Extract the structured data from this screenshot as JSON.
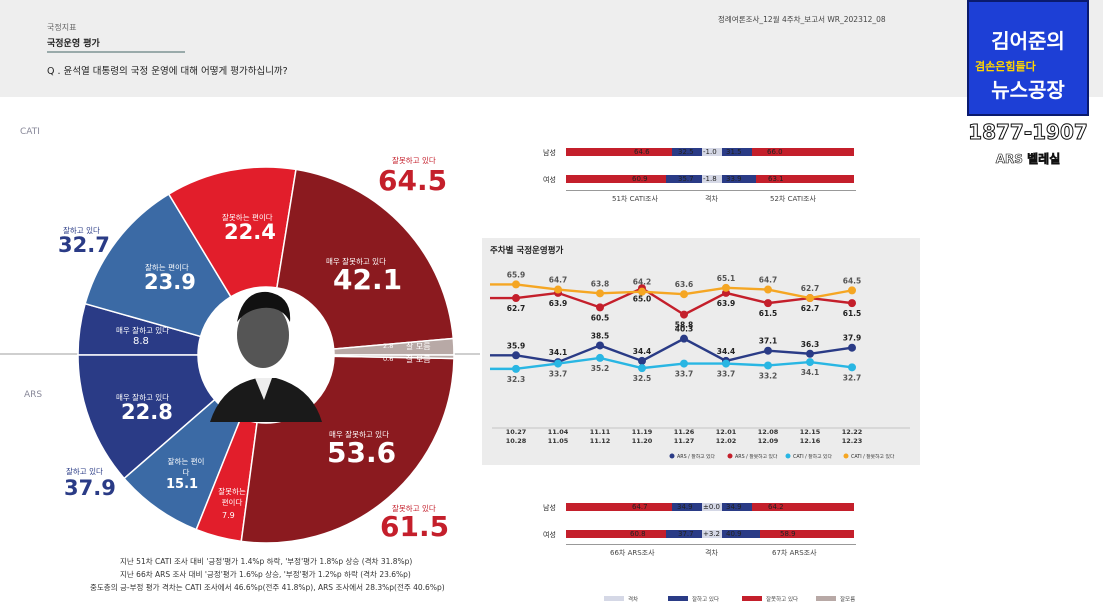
{
  "header": {
    "section": "국정지표",
    "title": "국정운영 평가",
    "question": "Q . 윤석열 대통령의 국정 운영에 대해 어떻게 평가하십니까?",
    "docref": "정례여론조사_12월 4주차_보고서   WR_202312_08"
  },
  "logo": {
    "line1": "김어준의",
    "line2": "겸손은힘들다",
    "line3": "뉴스공장",
    "phone": "1877-1907",
    "sub": "ARS 벨레실"
  },
  "side_labels": {
    "cati": "CATI",
    "ars": "ARS"
  },
  "colors": {
    "navy": "#2a3b86",
    "steel": "#3b6aa5",
    "darkred": "#8b1a1f",
    "red": "#e21e2b",
    "gray": "#b8a9a6",
    "bgpanel": "#ececec"
  },
  "donut": {
    "cati": {
      "good_total_label": "잘하고 있다",
      "good_total": "32.7",
      "bad_total_label": "잘못하고 있다",
      "bad_total": "64.5",
      "very_good_label": "매우 잘하고 있다",
      "very_good": "8.8",
      "some_good_label": "잘하는 편이다",
      "some_good": "23.9",
      "some_bad_label": "잘못하는 편이다",
      "some_bad": "22.4",
      "very_bad_label": "매우 잘못하고 있다",
      "very_bad": "42.1",
      "dk_label": "잘 모름",
      "dk": "2.8"
    },
    "ars": {
      "good_total_label": "잘하고 있다",
      "good_total": "37.9",
      "bad_total_label": "잘못하고 있다",
      "bad_total": "61.5",
      "very_good_label": "매우 잘하고 있다",
      "very_good": "22.8",
      "some_good_label": "잘하는 편이다",
      "some_good": "15.1",
      "some_bad_label": "잘못하는 편이다",
      "some_bad": "7.9",
      "very_bad_label": "매우 잘못하고 있다",
      "very_bad": "53.6",
      "dk_label": "잘 모름",
      "dk": "0.6"
    }
  },
  "footnotes": [
    "지난 51차 CATI 조사 대비 '긍정'평가 1.4%p 하락, '부정'평가 1.8%p 상승 (격차 31.8%p)",
    "지난 66차 ARS 조사 대비 '긍정'평가 1.6%p 상승, '부정'평가 1.2%p 하락 (격차 23.6%p)",
    "중도층의 긍-부정 평가 격차는 CATI 조사에서 46.6%p(전주 41.8%p), ARS 조사에서 28.3%p(전주 40.6%p)"
  ],
  "gender_cati": {
    "rows": [
      {
        "label": "남성",
        "prev_bad": "64.6",
        "prev_good": "32.5",
        "diff": "-1.0",
        "cur_good": "31.5",
        "cur_bad": "66.0"
      },
      {
        "label": "여성",
        "prev_bad": "60.9",
        "prev_good": "35.7",
        "diff": "-1.8",
        "cur_good": "33.9",
        "cur_bad": "63.1"
      }
    ],
    "prev_caption": "51차 CATI조사",
    "diff_caption": "격차",
    "cur_caption": "52차 CATI조사"
  },
  "gender_ars": {
    "rows": [
      {
        "label": "남성",
        "prev_bad": "64.7",
        "prev_good": "34.9",
        "diff": "±0.0",
        "cur_good": "34.9",
        "cur_bad": "64.2"
      },
      {
        "label": "여성",
        "prev_bad": "60.8",
        "prev_good": "37.7",
        "diff": "+3.2",
        "cur_good": "40.9",
        "cur_bad": "58.9"
      }
    ],
    "prev_caption": "66차 ARS조사",
    "diff_caption": "격차",
    "cur_caption": "67차 ARS조사"
  },
  "bottom_legend": [
    "격차",
    "잘하고 있다",
    "잘못하고 있다",
    "잘모름"
  ],
  "chart_data": {
    "type": "line",
    "title": "주차별 국정운영평가",
    "categories": [
      "10.27\n10.28",
      "11.04\n11.05",
      "11.11\n11.12",
      "11.19\n11.20",
      "11.26\n11.27",
      "12.01\n12.02",
      "12.08\n12.09",
      "12.15\n12.16",
      "12.22\n12.23"
    ],
    "series": [
      {
        "name": "ARS / 잘하고 있다",
        "color": "#2a3b86",
        "values": [
          35.9,
          34.1,
          38.5,
          34.4,
          40.3,
          34.4,
          37.1,
          36.3,
          37.9
        ]
      },
      {
        "name": "ARS / 잘못하고 있다",
        "color": "#c41f2b",
        "values": [
          62.7,
          63.9,
          60.5,
          65.0,
          58.8,
          63.9,
          61.5,
          62.7,
          61.5
        ]
      },
      {
        "name": "CATI / 잘하고 있다",
        "color": "#29b6e3",
        "values": [
          32.3,
          33.7,
          35.2,
          32.5,
          33.7,
          33.7,
          33.2,
          34.1,
          32.7
        ]
      },
      {
        "name": "CATI / 잘못하고 있다",
        "color": "#f5a623",
        "values": [
          65.9,
          64.7,
          63.8,
          64.2,
          63.6,
          65.1,
          64.7,
          62.7,
          64.5
        ]
      }
    ],
    "xlabel": "",
    "ylabel": "",
    "grid": false
  }
}
